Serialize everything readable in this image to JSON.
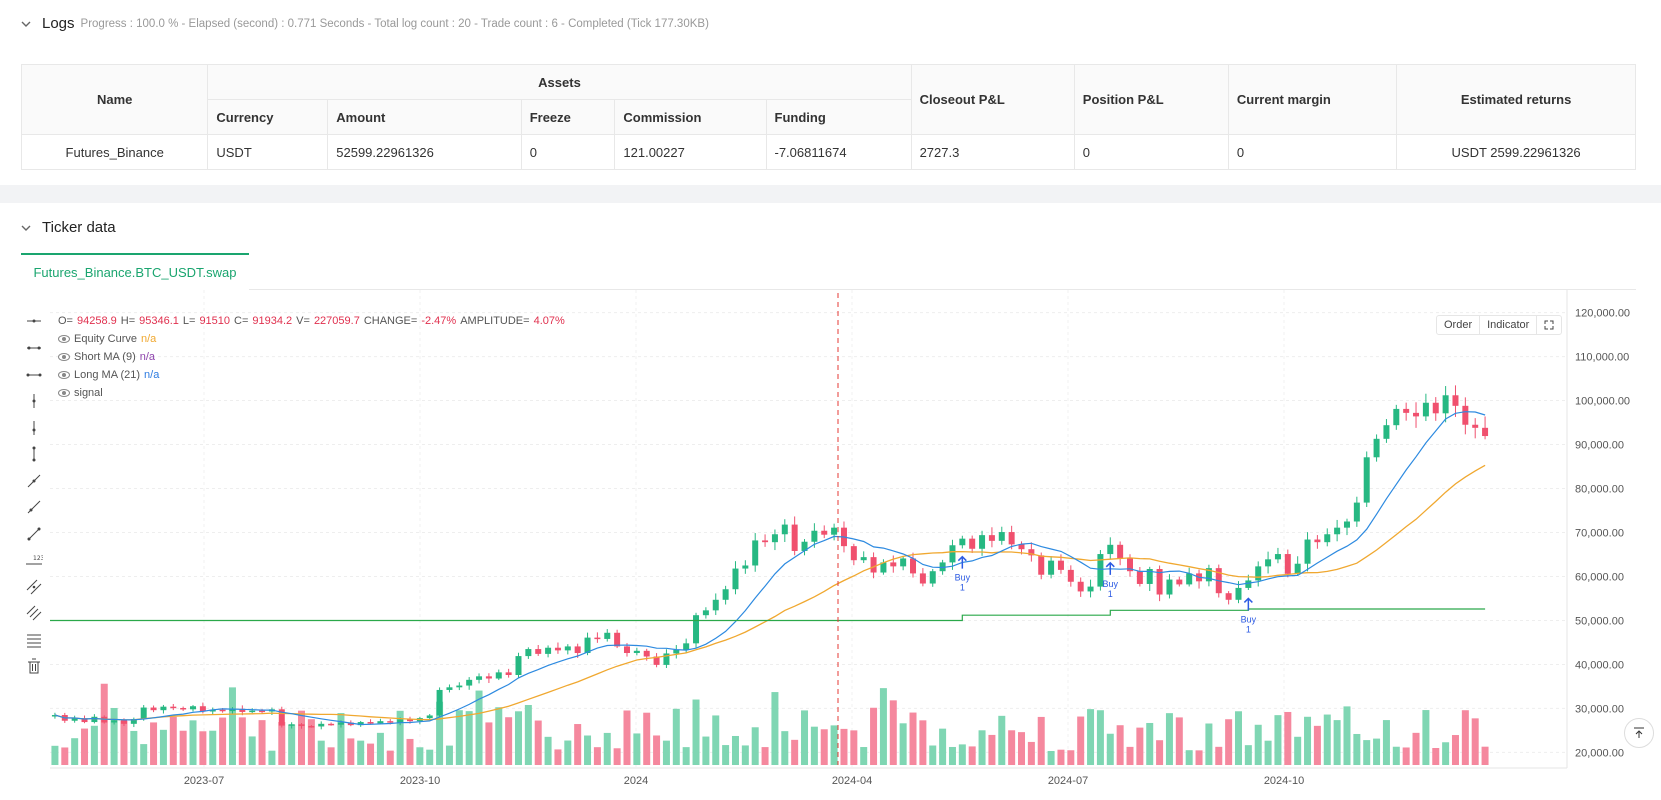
{
  "logs": {
    "title": "Logs",
    "summary": "Progress : 100.0 % - Elapsed (second) : 0.771  Seconds - Total log count : 20 - Trade count : 6 - Completed (Tick 177.30KB)"
  },
  "assets_table": {
    "headers": {
      "name": "Name",
      "assets": "Assets",
      "currency": "Currency",
      "amount": "Amount",
      "freeze": "Freeze",
      "commission": "Commission",
      "funding": "Funding",
      "closeout": "Closeout P&L",
      "position": "Position P&L",
      "margin": "Current margin",
      "returns": "Estimated returns"
    },
    "rows": [
      {
        "name": "Futures_Binance",
        "currency": "USDT",
        "amount": "52599.22961326",
        "freeze": "0",
        "commission": "121.00227",
        "funding": "-7.06811674",
        "closeout": "2727.3",
        "position": "0",
        "margin": "0",
        "returns": "USDT 2599.22961326"
      }
    ]
  },
  "ticker": {
    "title": "Ticker data",
    "tab": "Futures_Binance.BTC_USDT.swap"
  },
  "legend": {
    "ohlc": {
      "o_label": "O=",
      "o": "94258.9",
      "h_label": "H=",
      "h": "95346.1",
      "l_label": "L=",
      "l": "91510",
      "c_label": "C=",
      "c": "91934.2",
      "v_label": "V=",
      "v": "227059.7",
      "change_label": "CHANGE=",
      "change": "-2.47%",
      "amp_label": "AMPLITUDE=",
      "amp": "4.07%"
    },
    "series": [
      {
        "name": "Equity Curve",
        "value": "n/a",
        "color": "#f0a830"
      },
      {
        "name": "Short MA (9)",
        "value": "n/a",
        "color": "#8e44ad"
      },
      {
        "name": "Long MA (21)",
        "value": "n/a",
        "color": "#2d7be0"
      },
      {
        "name": "signal",
        "value": "",
        "color": "#555555"
      }
    ]
  },
  "chart_buttons": {
    "order": "Order",
    "indicator": "Indicator"
  },
  "chart_data": {
    "type": "candlestick",
    "y_ticks": [
      "120,000.00",
      "110,000.00",
      "100,000.00",
      "90,000.00",
      "80,000.00",
      "70,000.00",
      "60,000.00",
      "50,000.00",
      "40,000.00",
      "30,000.00",
      "20,000.00"
    ],
    "ylim": [
      16000,
      124000
    ],
    "x_ticks": [
      "2023-07",
      "2023-10",
      "2024",
      "2024-04",
      "2024-07",
      "2024-10"
    ],
    "closes": [
      28500,
      27200,
      27800,
      26900,
      28100,
      26800,
      27300,
      26500,
      27600,
      30200,
      29600,
      30400,
      30100,
      29800,
      30500,
      29300,
      29700,
      29400,
      29900,
      29200,
      29500,
      29300,
      29800,
      26100,
      26400,
      26000,
      25900,
      26500,
      26300,
      26800,
      26200,
      26900,
      26600,
      27100,
      26800,
      27500,
      27100,
      27800,
      28400,
      34200,
      34800,
      35200,
      36500,
      37300,
      36800,
      38200,
      37600,
      41900,
      43500,
      42400,
      43800,
      43200,
      44100,
      42600,
      46100,
      45800,
      47200,
      44100,
      42600,
      43100,
      41800,
      39900,
      42500,
      43300,
      44800,
      51200,
      52300,
      54700,
      57100,
      61800,
      62500,
      68200,
      67800,
      69600,
      71800,
      65800,
      67900,
      70400,
      69500,
      71100,
      66900,
      63700,
      64400,
      60900,
      63200,
      62300,
      64100,
      60700,
      58400,
      61200,
      63200,
      67100,
      68600,
      66300,
      69400,
      68100,
      70100,
      67300,
      66200,
      64800,
      60400,
      63600,
      61500,
      58800,
      56600,
      57700,
      65100,
      67200,
      64100,
      61200,
      58300,
      61700,
      55900,
      59300,
      58200,
      60700,
      58900,
      61900,
      56200,
      54700,
      57400,
      59100,
      62300,
      63900,
      65100,
      60600,
      62900,
      68400,
      67800,
      69600,
      71100,
      72500,
      76800,
      87100,
      91300,
      94400,
      98100,
      97200,
      96400,
      99500,
      97100,
      101200,
      98800,
      94500,
      93800,
      91934
    ]
  }
}
